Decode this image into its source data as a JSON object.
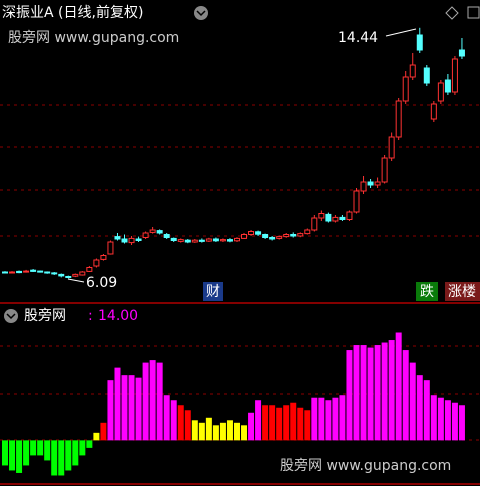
{
  "chart_data": [
    {
      "type": "candlestick",
      "title": "深振业A (日线,前复权)",
      "watermark": "股旁网 www.gupang.com",
      "up_color": "#ff3232",
      "down_color": "#54ffff",
      "ylim": [
        5.6,
        15.0
      ],
      "high_label_index": 59,
      "low_label_index": 9,
      "badges": [
        "财",
        "跌",
        "涨楼"
      ],
      "open": [
        6.3,
        6.28,
        6.32,
        6.3,
        6.36,
        6.33,
        6.3,
        6.27,
        6.22,
        6.15,
        6.16,
        6.2,
        6.32,
        6.5,
        6.72,
        6.9,
        7.48,
        7.4,
        7.28,
        7.4,
        7.45,
        7.62,
        7.68,
        7.55,
        7.42,
        7.32,
        7.36,
        7.3,
        7.36,
        7.33,
        7.4,
        7.34,
        7.38,
        7.34,
        7.42,
        7.55,
        7.64,
        7.55,
        7.45,
        7.42,
        7.48,
        7.55,
        7.5,
        7.58,
        7.7,
        8.1,
        8.22,
        8.0,
        8.12,
        8.05,
        8.3,
        9.0,
        9.3,
        9.2,
        9.3,
        10.1,
        10.8,
        12.0,
        12.8,
        14.2,
        13.1,
        11.4,
        12.0,
        12.7,
        12.3,
        13.7
      ],
      "close": [
        6.28,
        6.3,
        6.28,
        6.33,
        6.32,
        6.31,
        6.27,
        6.24,
        6.17,
        6.14,
        6.22,
        6.3,
        6.45,
        6.7,
        6.85,
        7.3,
        7.4,
        7.3,
        7.42,
        7.35,
        7.6,
        7.7,
        7.6,
        7.45,
        7.35,
        7.38,
        7.3,
        7.36,
        7.32,
        7.4,
        7.34,
        7.38,
        7.33,
        7.42,
        7.55,
        7.65,
        7.56,
        7.45,
        7.4,
        7.48,
        7.55,
        7.5,
        7.58,
        7.7,
        8.1,
        8.25,
        8.0,
        8.12,
        8.05,
        8.3,
        9.0,
        9.3,
        9.2,
        9.3,
        10.1,
        10.8,
        12.0,
        12.8,
        13.2,
        13.7,
        12.6,
        11.9,
        12.6,
        12.3,
        13.4,
        13.5
      ],
      "high": [
        6.33,
        6.33,
        6.35,
        6.37,
        6.4,
        6.35,
        6.32,
        6.3,
        6.25,
        6.18,
        6.25,
        6.33,
        6.5,
        6.75,
        6.9,
        7.35,
        7.6,
        7.55,
        7.5,
        7.48,
        7.65,
        7.8,
        7.72,
        7.6,
        7.45,
        7.42,
        7.4,
        7.4,
        7.42,
        7.44,
        7.45,
        7.42,
        7.43,
        7.46,
        7.6,
        7.7,
        7.68,
        7.58,
        7.5,
        7.52,
        7.6,
        7.62,
        7.62,
        7.75,
        8.2,
        8.35,
        8.28,
        8.2,
        8.2,
        8.35,
        9.1,
        9.5,
        9.4,
        9.45,
        10.2,
        10.95,
        12.1,
        13.0,
        13.6,
        14.44,
        13.2,
        12.0,
        12.7,
        12.9,
        13.5,
        14.1
      ],
      "low": [
        6.25,
        6.26,
        6.26,
        6.28,
        6.3,
        6.28,
        6.24,
        6.2,
        6.12,
        6.09,
        6.13,
        6.18,
        6.3,
        6.45,
        6.68,
        6.88,
        7.35,
        7.25,
        7.2,
        7.3,
        7.4,
        7.58,
        7.55,
        7.4,
        7.3,
        7.28,
        7.26,
        7.27,
        7.28,
        7.3,
        7.3,
        7.3,
        7.29,
        7.3,
        7.4,
        7.5,
        7.5,
        7.4,
        7.35,
        7.38,
        7.44,
        7.45,
        7.46,
        7.55,
        7.65,
        8.0,
        7.95,
        7.95,
        8.0,
        8.0,
        8.25,
        8.9,
        9.1,
        9.1,
        9.25,
        10.0,
        10.7,
        11.9,
        12.7,
        13.6,
        12.5,
        11.3,
        11.9,
        12.2,
        12.2,
        13.4
      ]
    },
    {
      "type": "bar",
      "title": "股旁网",
      "separator": ":",
      "current_label": "14.00",
      "watermark": "股旁网 www.gupang.com",
      "ylim": [
        -17,
        44
      ],
      "values": [
        -10,
        -12,
        -13,
        -10,
        -6,
        -6,
        -8,
        -14,
        -14,
        -12,
        -10,
        -6,
        -3,
        3,
        7,
        24,
        29,
        26,
        26,
        25,
        31,
        32,
        31,
        18,
        16,
        14,
        12,
        8,
        7,
        9,
        6,
        7,
        8,
        7,
        6,
        11,
        16,
        14,
        14,
        13,
        14,
        15,
        13,
        12,
        17,
        17,
        16,
        17,
        18,
        36,
        38,
        38,
        37,
        38,
        39,
        40,
        43,
        36,
        31,
        26,
        24,
        18,
        17,
        16,
        15,
        14
      ],
      "colors": [
        "#00ff00",
        "#00ff00",
        "#00ff00",
        "#00ff00",
        "#00ff00",
        "#00ff00",
        "#00ff00",
        "#00ff00",
        "#00ff00",
        "#00ff00",
        "#00ff00",
        "#00ff00",
        "#00ff00",
        "#ffff00",
        "#ff0000",
        "#ff00ff",
        "#ff00ff",
        "#ff00ff",
        "#ff00ff",
        "#ff00ff",
        "#ff00ff",
        "#ff00ff",
        "#ff00ff",
        "#ff00ff",
        "#ff00ff",
        "#ff0000",
        "#ff0000",
        "#ffff00",
        "#ffff00",
        "#ffff00",
        "#ffff00",
        "#ffff00",
        "#ffff00",
        "#ffff00",
        "#ffff00",
        "#ff00ff",
        "#ff00ff",
        "#ff0000",
        "#ff0000",
        "#ff0000",
        "#ff0000",
        "#ff0000",
        "#ff0000",
        "#ff0000",
        "#ff00ff",
        "#ff00ff",
        "#ff00ff",
        "#ff00ff",
        "#ff00ff",
        "#ff00ff",
        "#ff00ff",
        "#ff00ff",
        "#ff00ff",
        "#ff00ff",
        "#ff00ff",
        "#ff00ff",
        "#ff00ff",
        "#ff00ff",
        "#ff00ff",
        "#ff00ff",
        "#ff00ff",
        "#ff00ff",
        "#ff00ff",
        "#ff00ff",
        "#ff00ff",
        "#ff00ff"
      ]
    }
  ]
}
